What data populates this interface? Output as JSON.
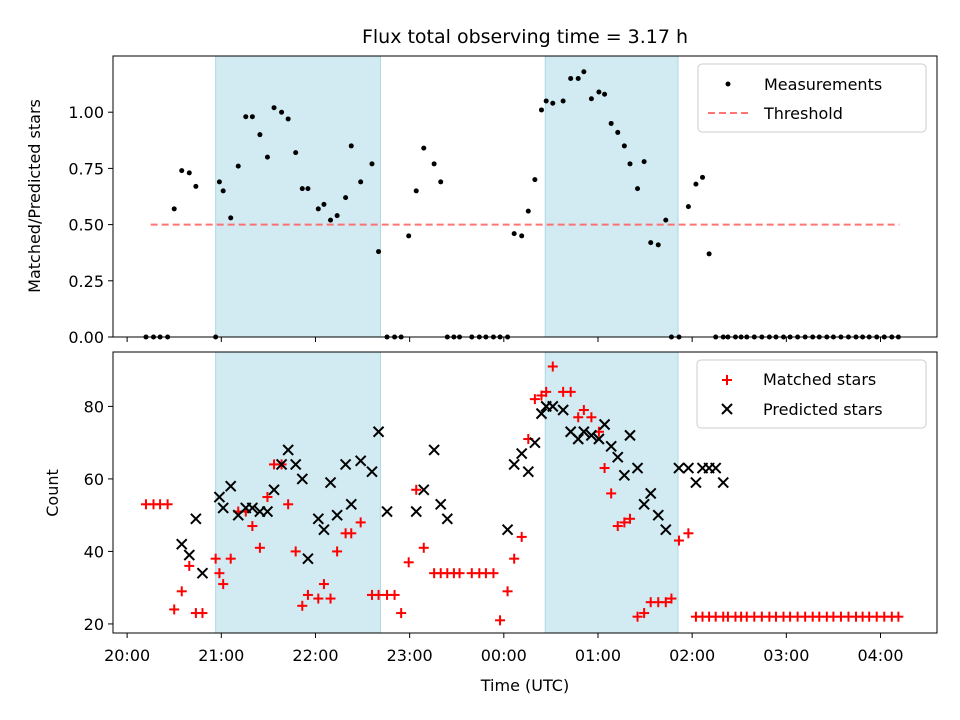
{
  "chart_data": {
    "type": "scatter",
    "title": "Flux total observing time = 3.17 h",
    "xlabel": "Time (UTC)",
    "x_ticks": [
      "20:00",
      "21:00",
      "22:00",
      "23:00",
      "00:00",
      "01:00",
      "02:00",
      "03:00",
      "04:00"
    ],
    "x_range_hours": [
      19.85,
      28.6
    ],
    "shaded_intervals_hours": [
      [
        20.94,
        22.69
      ],
      [
        24.44,
        25.85
      ]
    ],
    "shade_color": "#add8e6",
    "panels": [
      {
        "ylabel": "Matched/Predicted stars",
        "ylim": [
          0,
          1.25
        ],
        "y_ticks": [
          "0.00",
          "0.25",
          "0.50",
          "0.75",
          "1.00"
        ],
        "legend_position": "top-right",
        "series": [
          {
            "name": "Measurements",
            "marker": "dot",
            "color": "#000000",
            "x": [
              20.2,
              20.28,
              20.35,
              20.43,
              20.5,
              20.58,
              20.66,
              20.73,
              20.94,
              20.98,
              21.02,
              21.1,
              21.18,
              21.26,
              21.33,
              21.41,
              21.49,
              21.56,
              21.64,
              21.71,
              21.79,
              21.86,
              21.92,
              22.03,
              22.09,
              22.16,
              22.23,
              22.32,
              22.38,
              22.48,
              22.6,
              22.67,
              22.76,
              22.84,
              22.91,
              22.99,
              23.07,
              23.15,
              23.26,
              23.33,
              23.4,
              23.47,
              23.53,
              23.66,
              23.74,
              23.81,
              23.89,
              23.96,
              24.04,
              24.11,
              24.19,
              24.26,
              24.33,
              24.4,
              24.45,
              24.52,
              24.63,
              24.71,
              24.79,
              24.85,
              24.93,
              25.01,
              25.07,
              25.14,
              25.21,
              25.28,
              25.34,
              25.42,
              25.49,
              25.56,
              25.64,
              25.72,
              25.78,
              25.86,
              25.96,
              26.04,
              26.11,
              26.18,
              26.25,
              26.33,
              26.38,
              26.46,
              26.52,
              26.58,
              26.66,
              26.74,
              26.82,
              26.89,
              26.97,
              27.04,
              27.12,
              27.2,
              27.28,
              27.35,
              27.43,
              27.5,
              27.58,
              27.66,
              27.74,
              27.81,
              27.88,
              27.96,
              28.04,
              28.12,
              28.19
            ],
            "y": [
              0,
              0,
              0,
              0,
              0.57,
              0.74,
              0.73,
              0.67,
              0,
              0.69,
              0.65,
              0.53,
              0.76,
              0.98,
              0.98,
              0.9,
              0.8,
              1.02,
              1.0,
              0.97,
              0.82,
              0.66,
              0.66,
              0.57,
              0.59,
              0.52,
              0.54,
              0.62,
              0.85,
              0.69,
              0.77,
              0.38,
              0,
              0,
              0,
              0.45,
              0.65,
              0.84,
              0.77,
              0.69,
              0,
              0,
              0,
              0,
              0,
              0,
              0,
              0,
              0,
              0.46,
              0.45,
              0.56,
              0.7,
              1.01,
              1.05,
              1.04,
              1.05,
              1.15,
              1.15,
              1.18,
              1.06,
              1.09,
              1.08,
              0.95,
              0.91,
              0.85,
              0.77,
              0.66,
              0.78,
              0.42,
              0.41,
              0.52,
              0,
              0,
              0.58,
              0.68,
              0.71,
              0.37,
              0,
              0,
              0,
              0,
              0,
              0,
              0,
              0,
              0,
              0,
              0,
              0,
              0,
              0,
              0,
              0,
              0,
              0,
              0,
              0,
              0,
              0,
              0,
              0,
              0,
              0,
              0
            ]
          },
          {
            "name": "Threshold",
            "line": "dashed",
            "color": "#ff6666",
            "x": [
              20.25,
              28.2
            ],
            "y": [
              0.5,
              0.5
            ]
          }
        ]
      },
      {
        "ylabel": "Count",
        "ylim": [
          17.5,
          95
        ],
        "y_ticks": [
          "20",
          "40",
          "60",
          "80"
        ],
        "legend_position": "top-right",
        "series": [
          {
            "name": "Matched stars",
            "marker": "plus",
            "color": "#ff0000",
            "x": [
              20.2,
              20.28,
              20.35,
              20.43,
              20.5,
              20.58,
              20.66,
              20.73,
              20.8,
              20.94,
              20.98,
              21.02,
              21.1,
              21.18,
              21.26,
              21.33,
              21.41,
              21.49,
              21.56,
              21.64,
              21.71,
              21.79,
              21.86,
              21.92,
              22.03,
              22.09,
              22.16,
              22.23,
              22.32,
              22.38,
              22.48,
              22.6,
              22.67,
              22.76,
              22.84,
              22.91,
              22.99,
              23.07,
              23.15,
              23.26,
              23.33,
              23.4,
              23.47,
              23.53,
              23.66,
              23.74,
              23.81,
              23.89,
              23.96,
              24.04,
              24.11,
              24.19,
              24.26,
              24.33,
              24.4,
              24.45,
              24.52,
              24.63,
              24.71,
              24.79,
              24.85,
              24.93,
              25.01,
              25.07,
              25.14,
              25.21,
              25.28,
              25.34,
              25.42,
              25.49,
              25.56,
              25.64,
              25.72,
              25.78,
              25.86,
              25.96,
              26.04,
              26.11,
              26.18,
              26.25,
              26.33,
              26.38,
              26.46,
              26.52,
              26.58,
              26.66,
              26.74,
              26.82,
              26.89,
              26.97,
              27.04,
              27.12,
              27.2,
              27.28,
              27.35,
              27.43,
              27.5,
              27.58,
              27.66,
              27.74,
              27.81,
              27.88,
              27.96,
              28.04,
              28.12,
              28.19
            ],
            "y": [
              53,
              53,
              53,
              53,
              24,
              29,
              36,
              23,
              23,
              38,
              34,
              31,
              38,
              51,
              51,
              47,
              41,
              55,
              64,
              64,
              53,
              40,
              25,
              28,
              27,
              31,
              27,
              40,
              45,
              45,
              48,
              28,
              28,
              28,
              28,
              23,
              37,
              57,
              41,
              34,
              34,
              34,
              34,
              34,
              34,
              34,
              34,
              34,
              21,
              29,
              38,
              44,
              71,
              82,
              83,
              84,
              91,
              84,
              84,
              77,
              79,
              77,
              73,
              63,
              56,
              47,
              48,
              49,
              22,
              23,
              26,
              26,
              26,
              27,
              43,
              45,
              22,
              22,
              22,
              22,
              22,
              22,
              22,
              22,
              22,
              22,
              22,
              22,
              22,
              22,
              22,
              22,
              22,
              22,
              22,
              22,
              22,
              22,
              22,
              22,
              22,
              22,
              22,
              22,
              22,
              22
            ]
          },
          {
            "name": "Predicted stars",
            "marker": "x",
            "color": "#000000",
            "x": [
              20.58,
              20.66,
              20.73,
              20.8,
              20.98,
              21.02,
              21.1,
              21.18,
              21.26,
              21.33,
              21.41,
              21.49,
              21.56,
              21.64,
              21.71,
              21.79,
              21.86,
              21.92,
              22.03,
              22.09,
              22.16,
              22.23,
              22.32,
              22.38,
              22.48,
              22.6,
              22.67,
              22.76,
              23.07,
              23.15,
              23.26,
              23.33,
              23.4,
              24.04,
              24.11,
              24.19,
              24.26,
              24.33,
              24.4,
              24.45,
              24.52,
              24.63,
              24.71,
              24.79,
              24.85,
              24.93,
              25.01,
              25.07,
              25.14,
              25.21,
              25.28,
              25.34,
              25.42,
              25.49,
              25.56,
              25.64,
              25.72,
              25.86,
              25.96,
              26.04,
              26.11,
              26.18,
              26.25,
              26.33
            ],
            "y": [
              42,
              39,
              49,
              34,
              55,
              52,
              58,
              50,
              52,
              52,
              51,
              51,
              57,
              64,
              68,
              64,
              60,
              38,
              49,
              46,
              59,
              50,
              64,
              53,
              65,
              62,
              73,
              51,
              51,
              57,
              68,
              53,
              49,
              46,
              64,
              67,
              62,
              70,
              78,
              80,
              80,
              79,
              73,
              71,
              73,
              72,
              71,
              75,
              69,
              66,
              61,
              72,
              63,
              53,
              56,
              50,
              46,
              63,
              63,
              59,
              63,
              63,
              63,
              59
            ]
          }
        ]
      }
    ]
  }
}
